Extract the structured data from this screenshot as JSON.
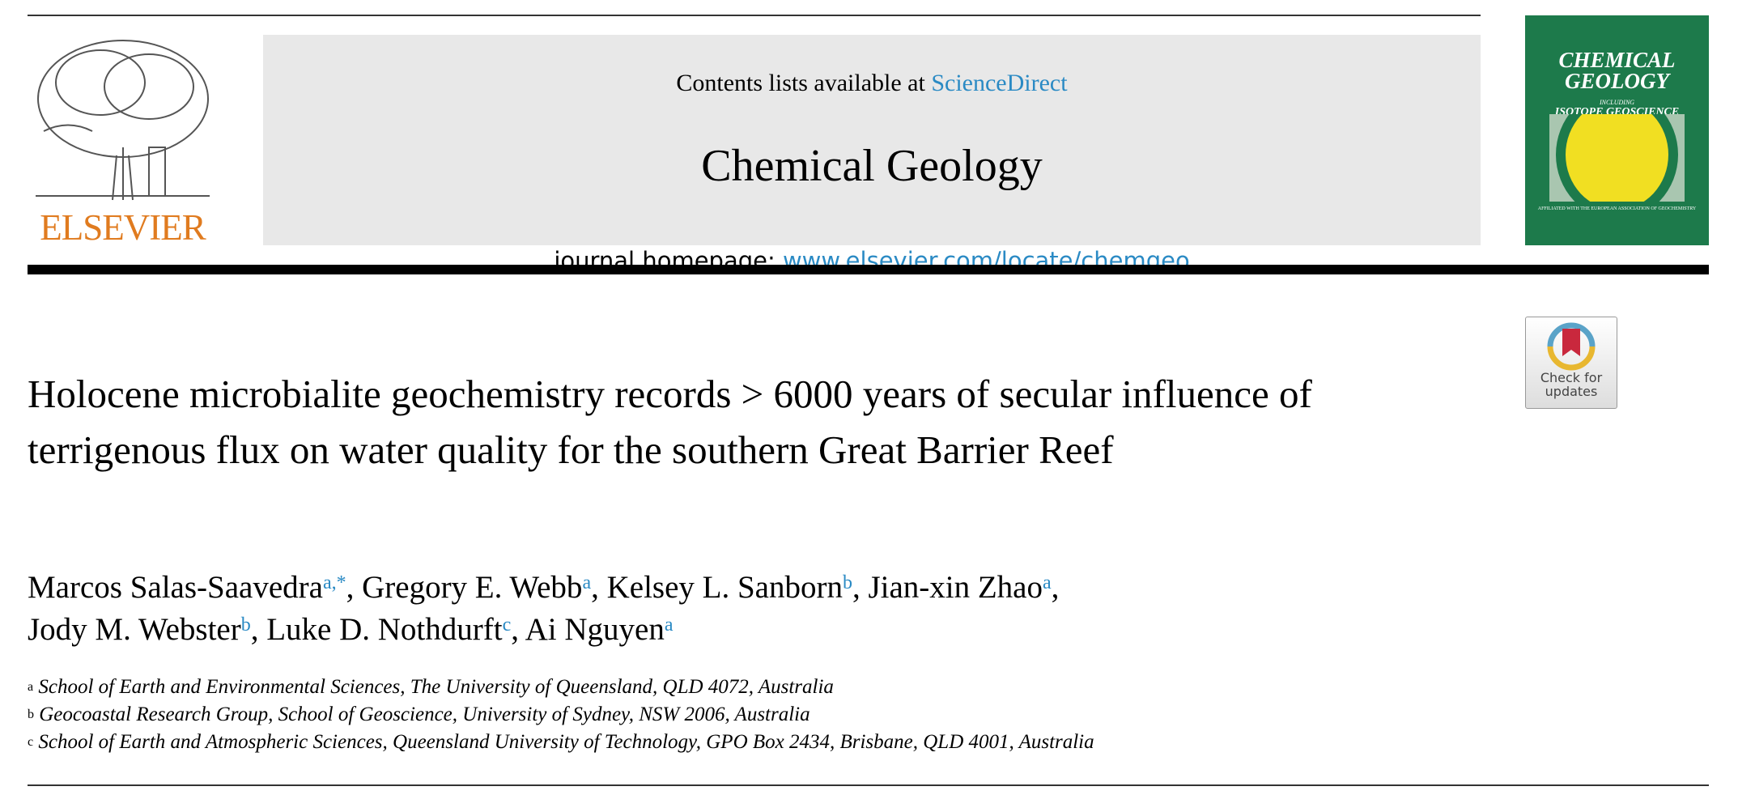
{
  "header": {
    "publisher": "ELSEVIER",
    "contents_prefix": "Contents lists available at ",
    "contents_link": "ScienceDirect",
    "journal_title": "Chemical Geology",
    "homepage_prefix": "journal homepage: ",
    "homepage_link": "www.elsevier.com/locate/chemgeo",
    "link_color": "#2a8ac4",
    "publisher_color": "#e07b1f"
  },
  "cover": {
    "title": "CHEMICAL GEOLOGY",
    "including": "INCLUDING",
    "subtitle": "ISOTOPE GEOSCIENCE",
    "affiliation": "AFFILIATED WITH THE EUROPEAN ASSOCIATION OF GEOCHEMISTRY",
    "color": "#1d7a4b"
  },
  "check_updates": {
    "label_line1": "Check for",
    "label_line2": "updates"
  },
  "article": {
    "title": "Holocene microbialite geochemistry records > 6000 years of secular influence of terrigenous flux on water quality for the southern Great Barrier Reef",
    "authors": [
      {
        "name": "Marcos Salas-Saavedra",
        "sup": "a,*",
        "sep": ", "
      },
      {
        "name": "Gregory E. Webb",
        "sup": "a",
        "sep": ", "
      },
      {
        "name": "Kelsey L. Sanborn",
        "sup": "b",
        "sep": ", "
      },
      {
        "name": "Jian-xin Zhao",
        "sup": "a",
        "sep": ","
      },
      {
        "name": "Jody M. Webster",
        "sup": "b",
        "sep": ", "
      },
      {
        "name": "Luke D. Nothdurft",
        "sup": "c",
        "sep": ", "
      },
      {
        "name": "Ai Nguyen",
        "sup": "a",
        "sep": ""
      }
    ],
    "affiliations": [
      {
        "key": "a",
        "text": "School of Earth and Environmental Sciences, The University of Queensland, QLD 4072, Australia"
      },
      {
        "key": "b",
        "text": "Geocoastal Research Group, School of Geoscience, University of Sydney, NSW 2006, Australia"
      },
      {
        "key": "c",
        "text": "School of Earth and Atmospheric Sciences, Queensland University of Technology, GPO Box 2434, Brisbane, QLD 4001, Australia"
      }
    ]
  }
}
